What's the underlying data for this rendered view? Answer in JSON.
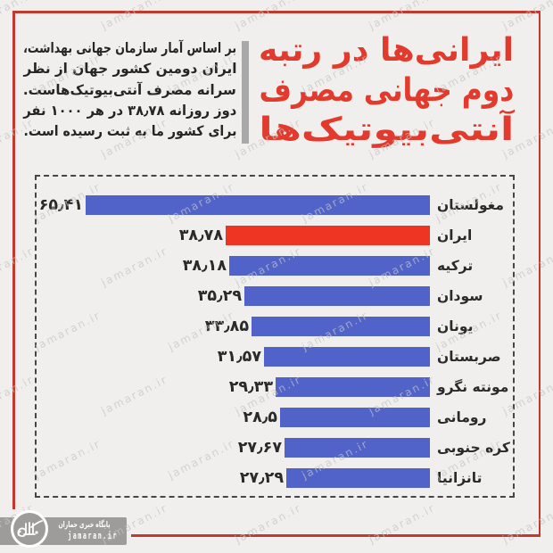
{
  "page": {
    "background": "#f1efed",
    "frame_color": "#c13a2d"
  },
  "watermark": {
    "text": "jamaran.ir"
  },
  "header": {
    "title_lines": [
      "ایرانی‌ها در رتبه",
      "دوم جهانی مصرف",
      "آنتی‌بیوتیک‌ها"
    ],
    "title_color": "#e23a2d",
    "intro_lines": [
      "بر اساس آمار سازمان جهانی بهداشت،",
      "ایران دومین کشور جهان از نظر",
      "سرانه مصرف آنتی‌بیوتیک‌هاست.",
      "دوز روزانه ۳۸٫۷۸ در هر ۱۰۰۰ نفر",
      "برای کشور ما به ثبت رسیده است."
    ]
  },
  "chart_data": {
    "type": "bar",
    "orientation": "horizontal-rtl",
    "title": "",
    "xlabel": "",
    "ylabel": "",
    "xlim": [
      0,
      68
    ],
    "grid": false,
    "legend": false,
    "categories": [
      "مغولستان",
      "ایران",
      "ترکیه",
      "سودان",
      "یونان",
      "صربستان",
      "مونته نگرو",
      "رومانی",
      "کره جنوبی",
      "تانزانیا"
    ],
    "values": [
      65.41,
      38.78,
      38.18,
      35.29,
      33.85,
      31.57,
      29.33,
      28.5,
      27.67,
      27.29
    ],
    "value_labels": [
      "۶۵٫۴۱",
      "۳۸٫۷۸",
      "۳۸٫۱۸",
      "۳۵٫۲۹",
      "۳۳٫۸۵",
      "۳۱٫۵۷",
      "۲۹٫۳۳",
      "۲۸٫۵",
      "۲۷٫۶۷",
      "۲۷٫۲۹"
    ],
    "bar_color": "#5163c8",
    "highlight_color": "#ee3423",
    "highlight_index": 1,
    "highlight_category": "ایران"
  },
  "footer": {
    "site_name": "پایگاه خبری جماران",
    "site_domain": "jamaran.ir"
  }
}
